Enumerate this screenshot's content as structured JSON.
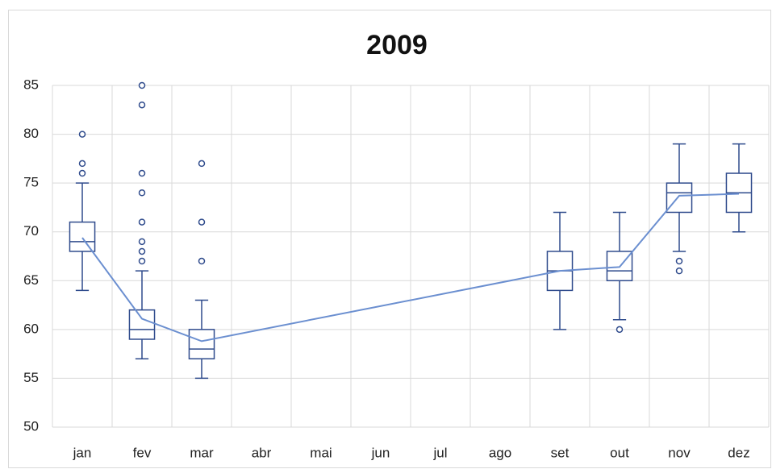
{
  "chart_data": {
    "type": "box",
    "title": "2009",
    "categories": [
      "jan",
      "fev",
      "mar",
      "abr",
      "mai",
      "jun",
      "jul",
      "ago",
      "set",
      "out",
      "nov",
      "dez"
    ],
    "boxes": [
      {
        "min": 64,
        "q1": 68,
        "median": 69,
        "q3": 71,
        "max": 75,
        "mean": 69.4,
        "outliers": [
          76,
          77,
          80
        ]
      },
      {
        "min": 57,
        "q1": 59,
        "median": 60,
        "q3": 62,
        "max": 66,
        "mean": 61.1,
        "outliers": [
          67,
          68,
          69,
          71,
          74,
          76,
          83,
          85
        ]
      },
      {
        "min": 55,
        "q1": 57,
        "median": 58,
        "q3": 60,
        "max": 63,
        "mean": 58.8,
        "outliers": [
          67,
          71,
          77
        ]
      },
      null,
      null,
      null,
      null,
      null,
      {
        "min": 60,
        "q1": 64,
        "median": 66,
        "q3": 68,
        "max": 72,
        "mean": 66,
        "outliers": []
      },
      {
        "min": 61,
        "q1": 65,
        "median": 66,
        "q3": 68,
        "max": 72,
        "mean": 66.4,
        "outliers": [
          60
        ]
      },
      {
        "min": 68,
        "q1": 72,
        "median": 74,
        "q3": 75,
        "max": 79,
        "mean": 73.7,
        "outliers": [
          66,
          67
        ]
      },
      {
        "min": 70,
        "q1": 72,
        "median": 74,
        "q3": 76,
        "max": 79,
        "mean": 73.9,
        "outliers": []
      }
    ],
    "color": "#2f4b8c",
    "mean_color": "#6b8fd0",
    "ylim": [
      50,
      85
    ],
    "yticks": [
      50,
      55,
      60,
      65,
      70,
      75,
      80,
      85
    ],
    "grid": true
  }
}
